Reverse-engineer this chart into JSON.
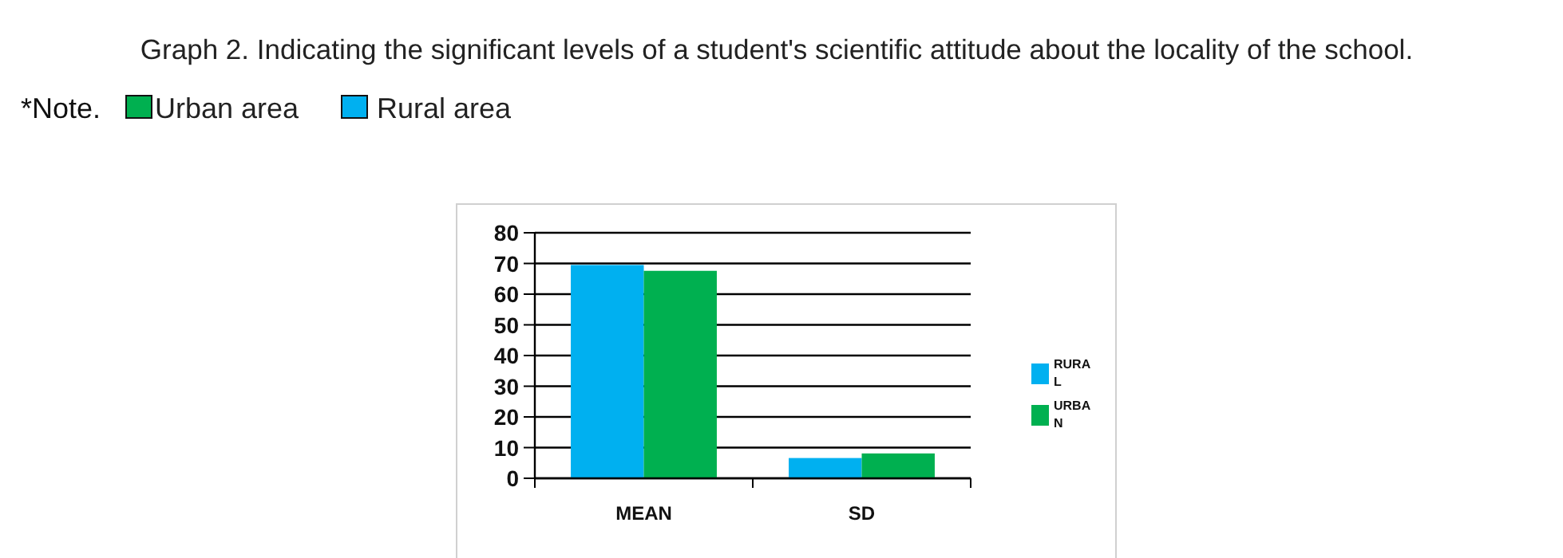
{
  "chart_data": {
    "type": "bar",
    "title": "Graph 2. Indicating the significant levels of a student's scientific attitude about the locality of the school.",
    "annotations": [
      "*Note.",
      "Urban area",
      "Rural area"
    ],
    "categories": [
      "MEAN",
      "SD"
    ],
    "series": [
      {
        "name": "RURAL",
        "color": "#00b0f0",
        "values": [
          69.5,
          6.6
        ]
      },
      {
        "name": "URBAN",
        "color": "#00b050",
        "values": [
          67.6,
          8.1
        ]
      }
    ],
    "ylim": [
      0,
      80
    ],
    "yticks": [
      0,
      10,
      20,
      30,
      40,
      50,
      60,
      70,
      80
    ],
    "grid": "y",
    "legend": "right"
  }
}
